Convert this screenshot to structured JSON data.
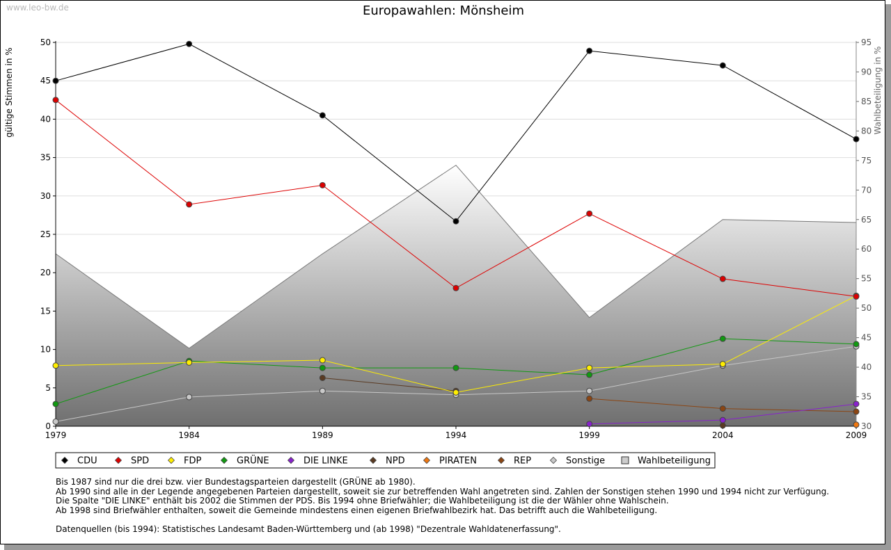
{
  "watermark": "www.leo-bw.de",
  "notes": [
    "Bis 1987 sind nur die drei bzw. vier Bundestagsparteien dargestellt (GRÜNE ab 1980).",
    "Ab 1990 sind alle in der Legende angegebenen Parteien dargestellt, soweit sie zur betreffenden Wahl angetreten sind. Zahlen der Sonstigen stehen 1990 und 1994 nicht zur Verfügung.",
    "Die Spalte \"DIE LINKE\" enthält bis 2002 die Stimmen der PDS. Bis 1994 ohne Briefwähler; die Wahlbeteiligung ist die der Wähler ohne Wahlschein.",
    "Ab 1998 sind Briefwähler enthalten, soweit die Gemeinde mindestens einen eigenen Briefwahlbezirk hat. Das betrifft auch die Wahlbeteiligung.",
    "",
    "Datenquellen (bis 1994): Statistisches Landesamt Baden-Württemberg und (ab 1998) \"Dezentrale Wahldatenerfassung\"."
  ],
  "chart_data": {
    "type": "line",
    "title": "Europawahlen: Mönsheim",
    "ylabel": "gültige Stimmen in %",
    "y2label": "Wahlbeteiligung in %",
    "ylim": [
      0,
      50
    ],
    "y2lim": [
      30,
      95
    ],
    "yticks": [
      0,
      5,
      10,
      15,
      20,
      25,
      30,
      35,
      40,
      45,
      50
    ],
    "y2ticks": [
      30,
      35,
      40,
      45,
      50,
      55,
      60,
      65,
      70,
      75,
      80,
      85,
      90,
      95
    ],
    "x": [
      1979,
      1984,
      1989,
      1994,
      1999,
      2004,
      2009
    ],
    "turnout": {
      "name": "Wahlbeteiligung",
      "values": [
        59.2,
        43.2,
        59.2,
        74.2,
        48.4,
        65.0,
        64.5
      ]
    },
    "series": [
      {
        "name": "CDU",
        "color": "#000000",
        "values": [
          45.0,
          49.8,
          40.5,
          26.7,
          48.9,
          47.0,
          37.4
        ]
      },
      {
        "name": "SPD",
        "color": "#dd0000",
        "values": [
          42.5,
          28.9,
          31.4,
          18.0,
          27.7,
          19.2,
          16.9
        ]
      },
      {
        "name": "FDP",
        "color": "#ffee00",
        "values": [
          7.9,
          8.3,
          8.6,
          4.4,
          7.6,
          8.1,
          17.0
        ]
      },
      {
        "name": "GRÜNE",
        "color": "#119911",
        "values": [
          2.9,
          8.5,
          7.6,
          7.6,
          6.7,
          11.4,
          10.7
        ]
      },
      {
        "name": "DIE LINKE",
        "color": "#8822cc",
        "values": [
          null,
          null,
          null,
          null,
          0.3,
          0.8,
          2.9
        ]
      },
      {
        "name": "NPD",
        "color": "#5a3a22",
        "values": [
          null,
          null,
          6.3,
          4.6,
          null,
          0.1,
          null
        ]
      },
      {
        "name": "PIRATEN",
        "color": "#ee7711",
        "values": [
          null,
          null,
          null,
          null,
          null,
          null,
          0.2
        ]
      },
      {
        "name": "REP",
        "color": "#8b4513",
        "values": [
          null,
          null,
          null,
          null,
          3.6,
          2.3,
          1.9
        ]
      },
      {
        "name": "Sonstige",
        "color": "#c8c8c8",
        "values": [
          0.6,
          3.8,
          4.6,
          4.1,
          4.6,
          7.9,
          10.4
        ]
      }
    ],
    "legend": [
      "CDU",
      "SPD",
      "FDP",
      "GRÜNE",
      "DIE LINKE",
      "NPD",
      "PIRATEN",
      "REP",
      "Sonstige",
      "Wahlbeteiligung"
    ]
  }
}
